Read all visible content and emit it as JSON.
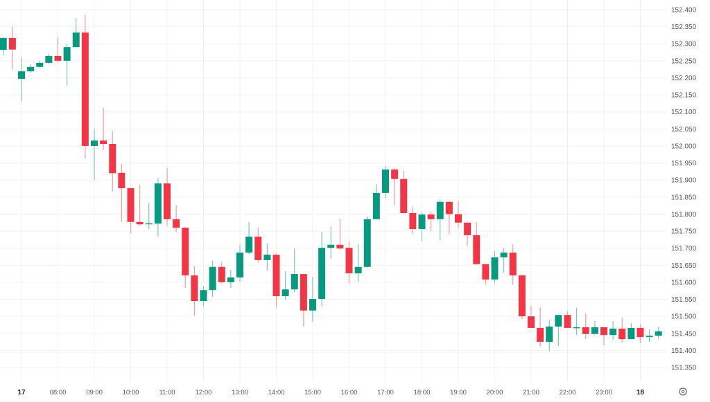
{
  "chart_data": {
    "type": "candlestick",
    "interval": "15m",
    "colors": {
      "up": "#089981",
      "down": "#f23645",
      "up_wick": "#7cc8b9",
      "down_wick": "#f59aa2",
      "grid": "#f2f2f2",
      "text": "#555555"
    },
    "grid": true,
    "ylim": [
      151.33,
      152.43
    ],
    "y_ticks": [
      "152.400",
      "152.350",
      "152.300",
      "152.250",
      "152.200",
      "152.150",
      "152.100",
      "152.050",
      "152.000",
      "151.950",
      "151.900",
      "151.850",
      "151.800",
      "151.750",
      "151.700",
      "151.650",
      "151.600",
      "151.550",
      "151.500",
      "151.450",
      "151.400",
      "151.350"
    ],
    "x_ticks": [
      {
        "label": "17",
        "hour": 7,
        "bold": true
      },
      {
        "label": "08:00",
        "hour": 8
      },
      {
        "label": "09:00",
        "hour": 9
      },
      {
        "label": "10:00",
        "hour": 10
      },
      {
        "label": "11:00",
        "hour": 11
      },
      {
        "label": "12:00",
        "hour": 12
      },
      {
        "label": "13:00",
        "hour": 13
      },
      {
        "label": "14:00",
        "hour": 14
      },
      {
        "label": "15:00",
        "hour": 15
      },
      {
        "label": "16:00",
        "hour": 16
      },
      {
        "label": "17:00",
        "hour": 17
      },
      {
        "label": "18:00",
        "hour": 18
      },
      {
        "label": "19:00",
        "hour": 19
      },
      {
        "label": "20:00",
        "hour": 20
      },
      {
        "label": "21:00",
        "hour": 21
      },
      {
        "label": "22:00",
        "hour": 22
      },
      {
        "label": "23:00",
        "hour": 23
      },
      {
        "label": "18",
        "hour": 24,
        "bold": true
      }
    ],
    "start_hour": 6.5,
    "candles": [
      [
        152.282,
        152.321,
        152.266,
        152.317
      ],
      [
        152.317,
        152.35,
        152.225,
        152.283
      ],
      [
        152.197,
        152.26,
        152.13,
        152.219
      ],
      [
        152.219,
        152.24,
        152.215,
        152.232
      ],
      [
        152.232,
        152.25,
        152.23,
        152.244
      ],
      [
        152.244,
        152.27,
        152.24,
        152.264
      ],
      [
        152.264,
        152.32,
        152.248,
        152.25
      ],
      [
        152.25,
        152.3,
        152.177,
        152.29
      ],
      [
        152.29,
        152.375,
        152.29,
        152.333
      ],
      [
        152.333,
        152.385,
        151.963,
        152.0
      ],
      [
        152.0,
        152.05,
        151.9,
        152.016
      ],
      [
        152.016,
        152.113,
        151.988,
        152.006
      ],
      [
        152.006,
        152.043,
        151.866,
        151.92
      ],
      [
        151.921,
        151.947,
        151.777,
        151.876
      ],
      [
        151.876,
        151.878,
        151.744,
        151.777
      ],
      [
        151.777,
        151.886,
        151.766,
        151.77
      ],
      [
        151.771,
        151.833,
        151.756,
        151.773
      ],
      [
        151.772,
        151.906,
        151.734,
        151.89
      ],
      [
        151.89,
        151.935,
        151.766,
        151.785
      ],
      [
        151.785,
        151.827,
        151.746,
        151.76
      ],
      [
        151.76,
        151.762,
        151.584,
        151.62
      ],
      [
        151.62,
        151.647,
        151.502,
        151.545
      ],
      [
        151.545,
        151.588,
        151.529,
        151.577
      ],
      [
        151.577,
        151.663,
        151.557,
        151.645
      ],
      [
        151.645,
        151.659,
        151.597,
        151.6
      ],
      [
        151.6,
        151.636,
        151.584,
        151.614
      ],
      [
        151.614,
        151.71,
        151.602,
        151.687
      ],
      [
        151.687,
        151.777,
        151.683,
        151.734
      ],
      [
        151.734,
        151.76,
        151.657,
        151.665
      ],
      [
        151.665,
        151.714,
        151.634,
        151.681
      ],
      [
        151.681,
        151.683,
        151.525,
        151.559
      ],
      [
        151.559,
        151.632,
        151.549,
        151.579
      ],
      [
        151.579,
        151.699,
        151.571,
        151.624
      ],
      [
        151.624,
        151.624,
        151.47,
        151.517
      ],
      [
        151.517,
        151.616,
        151.484,
        151.551
      ],
      [
        151.551,
        151.748,
        151.529,
        151.701
      ],
      [
        151.701,
        151.764,
        151.669,
        151.71
      ],
      [
        151.71,
        151.787,
        151.695,
        151.699
      ],
      [
        151.701,
        151.72,
        151.596,
        151.626
      ],
      [
        151.626,
        151.711,
        151.6,
        151.645
      ],
      [
        151.645,
        151.793,
        151.642,
        151.785
      ],
      [
        151.785,
        151.888,
        151.785,
        151.862
      ],
      [
        151.862,
        151.941,
        151.847,
        151.931
      ],
      [
        151.931,
        151.933,
        151.825,
        151.903
      ],
      [
        151.903,
        151.927,
        151.801,
        151.803
      ],
      [
        151.803,
        151.821,
        151.742,
        151.756
      ],
      [
        151.756,
        151.805,
        151.72,
        151.799
      ],
      [
        151.799,
        151.807,
        151.75,
        151.785
      ],
      [
        151.785,
        151.844,
        151.724,
        151.836
      ],
      [
        151.836,
        151.838,
        151.74,
        151.8
      ],
      [
        151.8,
        151.838,
        151.76,
        151.775
      ],
      [
        151.775,
        151.775,
        151.707,
        151.738
      ],
      [
        151.738,
        151.777,
        151.652,
        151.653
      ],
      [
        151.653,
        151.653,
        151.592,
        151.608
      ],
      [
        151.608,
        151.693,
        151.598,
        151.673
      ],
      [
        151.673,
        151.7,
        151.628,
        151.687
      ],
      [
        151.687,
        151.711,
        151.592,
        151.62
      ],
      [
        151.62,
        151.622,
        151.492,
        151.5
      ],
      [
        151.5,
        151.531,
        151.466,
        151.466
      ],
      [
        151.466,
        151.527,
        151.411,
        151.425
      ],
      [
        151.425,
        151.49,
        151.397,
        151.47
      ],
      [
        151.47,
        151.504,
        151.413,
        151.504
      ],
      [
        151.504,
        151.515,
        151.466,
        151.466
      ],
      [
        151.466,
        151.525,
        151.445,
        151.468
      ],
      [
        151.468,
        151.508,
        151.433,
        151.448
      ],
      [
        151.448,
        151.486,
        151.448,
        151.468
      ],
      [
        151.468,
        151.468,
        151.415,
        151.445
      ],
      [
        151.445,
        151.486,
        151.431,
        151.464
      ],
      [
        151.464,
        151.496,
        151.423,
        151.433
      ],
      [
        151.433,
        151.48,
        151.433,
        151.466
      ],
      [
        151.466,
        151.476,
        151.421,
        151.439
      ],
      [
        151.439,
        151.462,
        151.425,
        151.443
      ],
      [
        151.443,
        151.47,
        151.433,
        151.456
      ]
    ]
  }
}
